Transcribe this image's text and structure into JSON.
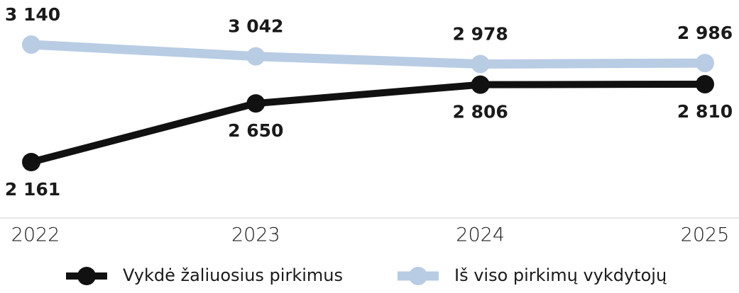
{
  "chart_data": {
    "type": "line",
    "categories": [
      "2022",
      "2023",
      "2024",
      "2025"
    ],
    "series": [
      {
        "name": "Vykdė žaliuosius pirkimus",
        "color": "#111111",
        "values": [
          2161,
          2650,
          2806,
          2810
        ],
        "value_labels": [
          "2 161",
          "2 650",
          "2 806",
          "2 810"
        ]
      },
      {
        "name": "Iš viso pirkimų vykdytojų",
        "color": "#b8cce4",
        "values": [
          3140,
          3042,
          2978,
          2986
        ],
        "value_labels": [
          "3 140",
          "3 042",
          "2 978",
          "2 986"
        ]
      }
    ]
  }
}
